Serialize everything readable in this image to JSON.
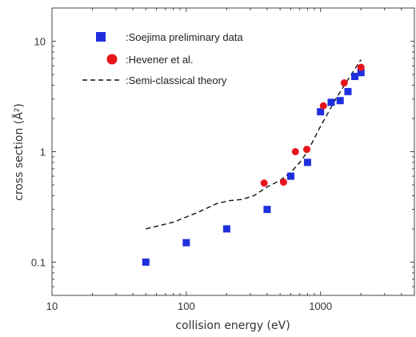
{
  "chart_data": {
    "type": "scatter",
    "x_scale": "log",
    "y_scale": "log",
    "xlim": [
      10,
      5000
    ],
    "ylim": [
      0.05,
      20
    ],
    "xlabel": "collision energy (eV)",
    "ylabel": "cross section (Å²)",
    "x_ticks": [
      {
        "value": 10,
        "label": "10"
      },
      {
        "value": 100,
        "label": "100"
      },
      {
        "value": 1000,
        "label": "1000"
      }
    ],
    "y_ticks": [
      {
        "value": 0.1,
        "label": "0.1"
      },
      {
        "value": 1,
        "label": "1"
      },
      {
        "value": 10,
        "label": "10"
      }
    ],
    "grid": false,
    "legend_position": "top-left",
    "series": [
      {
        "name": ":Soejima preliminary data",
        "kind": "square-marker",
        "color": "#1f2fe0",
        "x": [
          50,
          100,
          200,
          400,
          600,
          800,
          1000,
          1200,
          1400,
          1600,
          1800,
          2000
        ],
        "y": [
          0.1,
          0.15,
          0.2,
          0.3,
          0.6,
          0.8,
          2.3,
          2.8,
          2.9,
          3.5,
          4.8,
          5.2
        ]
      },
      {
        "name": ":Hevener et al.",
        "kind": "circle-marker",
        "color": "#e8141c",
        "x": [
          380,
          530,
          650,
          790,
          1050,
          1500,
          2000
        ],
        "y": [
          0.52,
          0.53,
          1.0,
          1.05,
          2.6,
          4.2,
          5.8
        ]
      },
      {
        "name": ":Semi-classical theory",
        "kind": "dashed-line",
        "color": "#111111",
        "x": [
          50,
          80,
          120,
          170,
          210,
          260,
          320,
          400,
          500,
          600,
          700,
          800,
          1000,
          1300,
          1600,
          2000
        ],
        "y": [
          0.2,
          0.23,
          0.28,
          0.34,
          0.36,
          0.37,
          0.4,
          0.48,
          0.55,
          0.65,
          0.8,
          1.0,
          1.7,
          3.0,
          4.5,
          6.8
        ]
      }
    ]
  }
}
